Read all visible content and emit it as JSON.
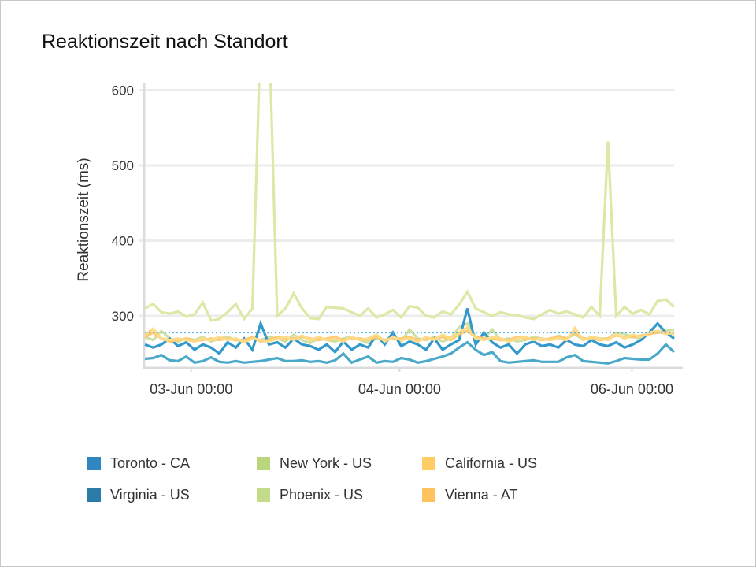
{
  "chart_data": {
    "type": "line",
    "title": "Reaktionszeit nach Standort",
    "xlabel": "",
    "ylabel": "Reaktionszeit (ms)",
    "ylim": [
      232,
      610
    ],
    "y_ticks": [
      300,
      400,
      500,
      600
    ],
    "x_ticks": [
      {
        "label": "03-Jun 00:00",
        "index": 5.6
      },
      {
        "label": "04-Jun 00:00",
        "index": 30.8
      },
      {
        "label": "06-Jun 00:00",
        "index": 58.9
      }
    ],
    "grid": true,
    "legend": "bottom",
    "reference_line": {
      "value": 278,
      "color": "#5bb8e8",
      "style": "dotted"
    },
    "series": [
      {
        "name": "Phoenix - US",
        "color": "#dce8a6",
        "legend_color": "#c4dc8a",
        "values": [
          310,
          316,
          305,
          303,
          306,
          299,
          302,
          318,
          294,
          296,
          305,
          316,
          296,
          310,
          680,
          690,
          300,
          310,
          330,
          310,
          297,
          296,
          312,
          311,
          310,
          305,
          300,
          310,
          298,
          302,
          308,
          298,
          313,
          311,
          300,
          298,
          306,
          302,
          315,
          332,
          310,
          305,
          300,
          305,
          302,
          301,
          298,
          296,
          302,
          308,
          303,
          306,
          302,
          298,
          312,
          300,
          532,
          300,
          312,
          303,
          308,
          302,
          320,
          322,
          312
        ]
      },
      {
        "name": "New York - US",
        "color": "#cfe0a0",
        "legend_color": "#b9d67c",
        "values": [
          272,
          268,
          280,
          270,
          266,
          270,
          268,
          272,
          266,
          270,
          272,
          268,
          266,
          270,
          268,
          272,
          270,
          266,
          275,
          268,
          264,
          270,
          268,
          266,
          270,
          272,
          268,
          264,
          270,
          268,
          272,
          266,
          282,
          270,
          268,
          272,
          266,
          270,
          285,
          290,
          272,
          270,
          282,
          268,
          270,
          266,
          268,
          272,
          270,
          268,
          274,
          270,
          276,
          268,
          272,
          270,
          270,
          278,
          276,
          272,
          270,
          278,
          280,
          280,
          282
        ]
      },
      {
        "name": "Virginia - US",
        "color": "#4aa8c8",
        "legend_color": "#2b7ba8",
        "values": [
          243,
          244,
          248,
          241,
          240,
          246,
          238,
          240,
          245,
          239,
          238,
          240,
          238,
          239,
          240,
          242,
          244,
          240,
          240,
          241,
          239,
          240,
          238,
          241,
          250,
          238,
          242,
          246,
          238,
          240,
          239,
          244,
          242,
          238,
          240,
          243,
          246,
          250,
          258,
          265,
          255,
          248,
          252,
          240,
          238,
          239,
          240,
          241,
          239,
          239,
          239,
          245,
          248,
          240,
          239,
          238,
          237,
          240,
          244,
          243,
          242,
          242,
          250,
          262,
          252
        ]
      },
      {
        "name": "Toronto - CA",
        "color": "#3399cc",
        "legend_color": "#2f86c0",
        "values": [
          262,
          258,
          262,
          270,
          260,
          265,
          255,
          262,
          258,
          250,
          265,
          258,
          270,
          255,
          290,
          262,
          265,
          258,
          270,
          262,
          260,
          255,
          262,
          252,
          266,
          255,
          262,
          258,
          275,
          262,
          278,
          260,
          266,
          262,
          255,
          270,
          255,
          262,
          268,
          310,
          262,
          278,
          265,
          258,
          262,
          250,
          262,
          266,
          260,
          262,
          258,
          268,
          262,
          260,
          268,
          262,
          260,
          265,
          258,
          262,
          268,
          278,
          290,
          278,
          270
        ]
      },
      {
        "name": "Vienna - AT",
        "color": "#ffca70",
        "legend_color": "#ffc25e",
        "values": [
          272,
          278,
          270,
          266,
          268,
          270,
          267,
          268,
          270,
          268,
          270,
          268,
          268,
          272,
          266,
          268,
          272,
          270,
          270,
          272,
          270,
          268,
          270,
          272,
          268,
          270,
          270,
          268,
          272,
          268,
          270,
          270,
          272,
          268,
          270,
          270,
          272,
          268,
          276,
          280,
          272,
          270,
          270,
          268,
          268,
          272,
          270,
          270,
          268,
          270,
          272,
          270,
          278,
          270,
          270,
          268,
          270,
          274,
          272,
          272,
          274,
          276,
          278,
          278,
          276
        ]
      },
      {
        "name": "California - US",
        "color": "#ffda88",
        "legend_color": "#ffcc66",
        "values": [
          275,
          283,
          270,
          268,
          270,
          268,
          266,
          270,
          268,
          272,
          268,
          270,
          265,
          270,
          268,
          266,
          270,
          272,
          268,
          274,
          268,
          272,
          268,
          270,
          266,
          272,
          268,
          270,
          275,
          266,
          272,
          268,
          270,
          266,
          272,
          268,
          275,
          270,
          278,
          285,
          270,
          268,
          272,
          270,
          266,
          270,
          272,
          268,
          270,
          268,
          270,
          268,
          284,
          268,
          272,
          270,
          268,
          276,
          270,
          275,
          272,
          278,
          280,
          276,
          278
        ]
      }
    ],
    "legend_order": [
      "Toronto - CA",
      "New York - US",
      "California - US",
      "Virginia - US",
      "Phoenix - US",
      "Vienna - AT"
    ]
  }
}
